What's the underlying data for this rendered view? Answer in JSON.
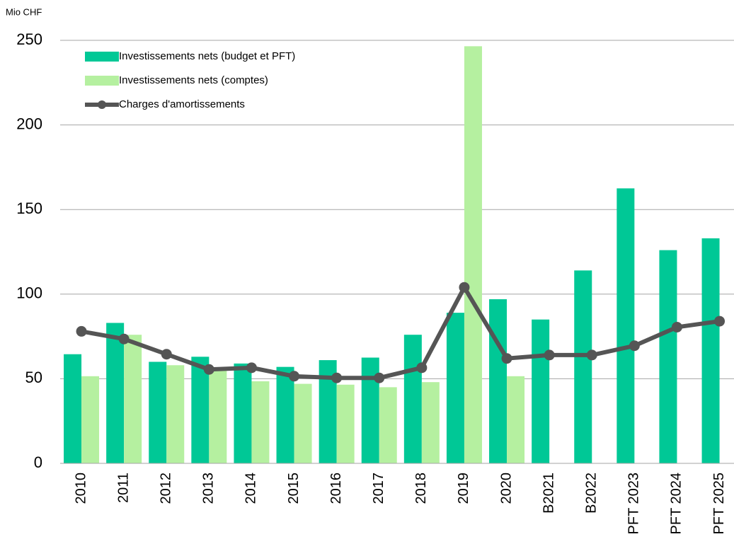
{
  "chart_data": {
    "type": "bar_line",
    "y_axis_label": "Mio CHF",
    "categories": [
      "2010",
      "2011",
      "2012",
      "2013",
      "2014",
      "2015",
      "2016",
      "2017",
      "2018",
      "2019",
      "2020",
      "B2021",
      "B2022",
      "PFT 2023",
      "PFT 2024",
      "PFT 2025"
    ],
    "series": [
      {
        "name": "Investissements nets (budget et PFT)",
        "type": "bar",
        "color": "#00c896",
        "values": [
          64.5,
          83,
          60,
          63,
          59,
          57,
          61,
          62.5,
          76,
          89,
          97,
          85,
          114,
          162.5,
          126,
          133
        ]
      },
      {
        "name": "Investissements nets (comptes)",
        "type": "bar",
        "color": "#b5f0a0",
        "values": [
          51.5,
          76,
          58,
          55,
          48.5,
          47,
          46.5,
          45,
          48,
          246.5,
          51.5,
          null,
          null,
          null,
          null,
          null
        ]
      },
      {
        "name": "Charges d'amortissements",
        "type": "line",
        "color": "#555555",
        "values": [
          78,
          73.5,
          64.5,
          55.5,
          56.5,
          51.5,
          50.5,
          50.5,
          56.5,
          104,
          62,
          64,
          64,
          69.5,
          80.5,
          84
        ]
      }
    ],
    "ylim": [
      0,
      250
    ],
    "yticks": [
      0,
      50,
      100,
      150,
      200,
      250
    ],
    "grid": true
  }
}
